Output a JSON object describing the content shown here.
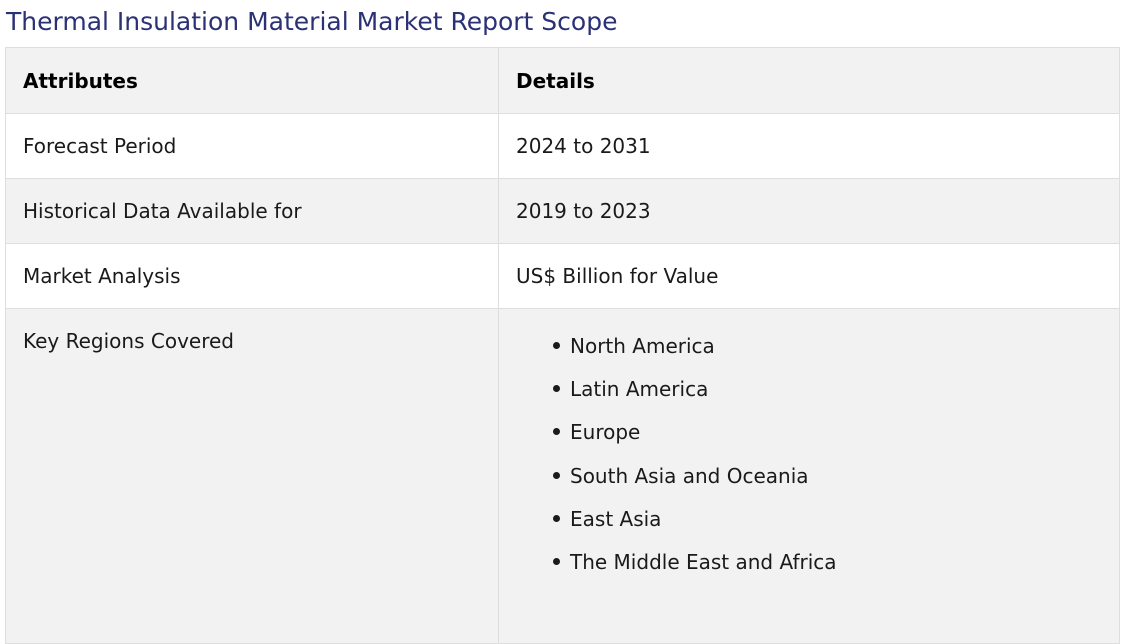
{
  "title": "Thermal Insulation Material Market Report Scope",
  "table": {
    "headers": [
      "Attributes",
      "Details"
    ],
    "rows": [
      {
        "attribute": "Forecast Period",
        "detail": "2024 to 2031"
      },
      {
        "attribute": "Historical Data Available for",
        "detail": "2019 to 2023"
      },
      {
        "attribute": "Market Analysis",
        "detail": "US$ Billion for Value"
      }
    ],
    "regions": {
      "attribute": "Key Regions Covered",
      "items": [
        "North America",
        "Latin America",
        "Europe",
        "South Asia and Oceania",
        "East Asia",
        "The Middle East and Africa"
      ]
    }
  },
  "colors": {
    "title": "#2b3175",
    "header_bg": "#f2f2f2",
    "shaded_row_bg": "#f2f2f2",
    "border": "#dedede"
  }
}
